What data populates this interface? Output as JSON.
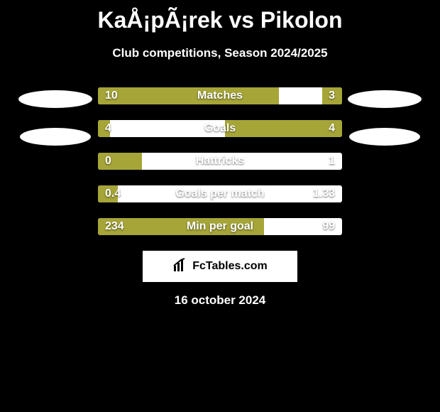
{
  "colors": {
    "background": "#000000",
    "accent": "#a6a538",
    "bar_bg": "#ffffff",
    "text": "#ffffff"
  },
  "title": "KaÅ¡pÃ¡rek vs Pikolon",
  "subtitle": "Club competitions, Season 2024/2025",
  "brand": "FcTables.com",
  "date": "16 october 2024",
  "stats": [
    {
      "label": "Matches",
      "left_text": "10",
      "right_text": "3",
      "left_pct": 74,
      "right_pct": 8
    },
    {
      "label": "Goals",
      "left_text": "4",
      "right_text": "4",
      "left_pct": 5,
      "right_pct": 48
    },
    {
      "label": "Hattricks",
      "left_text": "0",
      "right_text": "1",
      "left_pct": 18,
      "right_pct": 0
    },
    {
      "label": "Goals per match",
      "left_text": "0.4",
      "right_text": "1.33",
      "left_pct": 8,
      "right_pct": 0
    },
    {
      "label": "Min per goal",
      "left_text": "234",
      "right_text": "99",
      "left_pct": 68,
      "right_pct": 0
    }
  ]
}
